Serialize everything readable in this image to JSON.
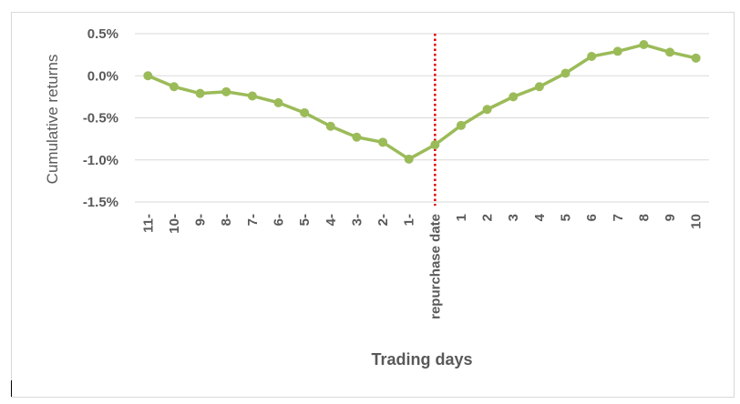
{
  "chart_data": {
    "type": "line",
    "title": "",
    "xlabel": "Trading days",
    "ylabel": "Cumulative returns",
    "categories": [
      "11-",
      "10-",
      "9-",
      "8-",
      "7-",
      "6-",
      "5-",
      "4-",
      "3-",
      "2-",
      "1-",
      "repurchase date",
      "1",
      "2",
      "3",
      "4",
      "5",
      "6",
      "7",
      "8",
      "9",
      "10"
    ],
    "series": [
      {
        "values": [
          0.0,
          -0.13,
          -0.21,
          -0.19,
          -0.24,
          -0.32,
          -0.44,
          -0.6,
          -0.73,
          -0.79,
          -0.99,
          -0.82,
          -0.59,
          -0.4,
          -0.25,
          -0.13,
          0.03,
          0.23,
          0.29,
          0.37,
          0.28,
          0.21
        ],
        "color": "#9bbb59"
      }
    ],
    "ylim": [
      -1.5,
      0.5
    ],
    "yticks": [
      "0.5%",
      "0.0%",
      "-0.5%",
      "-1.0%",
      "-1.5%"
    ],
    "ytick_values": [
      0.5,
      0.0,
      -0.5,
      -1.0,
      -1.5
    ],
    "grid": true,
    "marker_category": "repurchase date",
    "marker_color": "#e00000",
    "gridline_color": "#d9d9d9"
  }
}
